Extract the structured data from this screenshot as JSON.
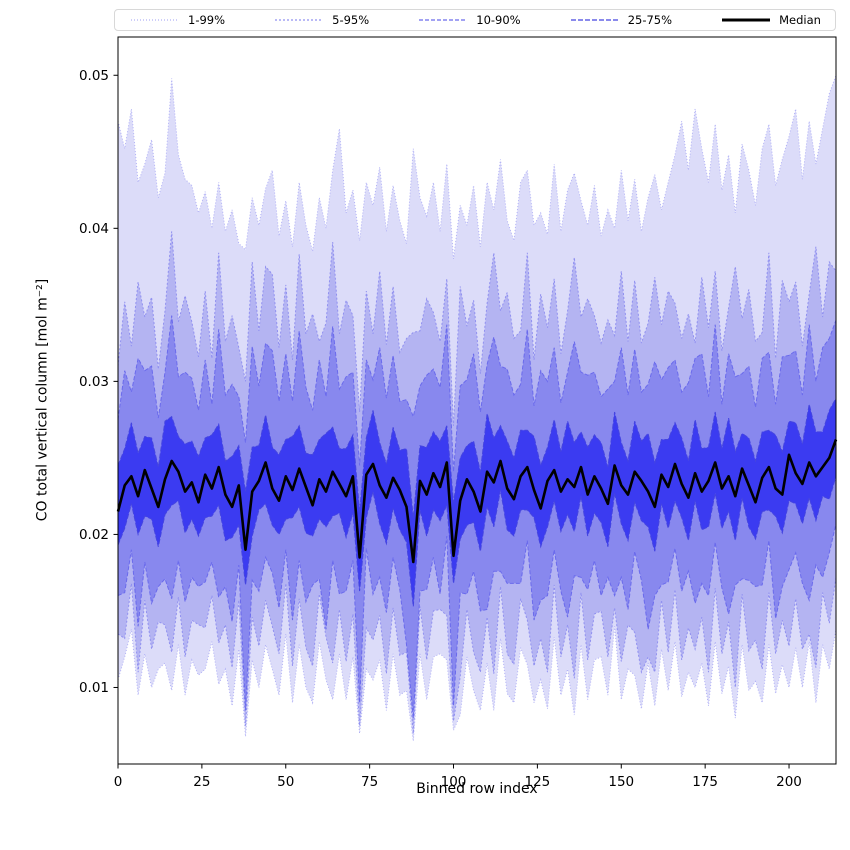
{
  "chart_data": {
    "type": "area",
    "title": "",
    "xlabel": "Binned row index",
    "ylabel": "CO total vertical column [mol m⁻²]",
    "xlim": [
      0,
      214
    ],
    "ylim": [
      0.005,
      0.0525
    ],
    "xticks": [
      0,
      25,
      50,
      75,
      100,
      125,
      150,
      175,
      200
    ],
    "xtick_labels": [
      "0",
      "25",
      "50",
      "75",
      "100",
      "125",
      "150",
      "175",
      "200"
    ],
    "yticks": [
      0.01,
      0.02,
      0.03,
      0.04,
      0.05
    ],
    "ytick_labels": [
      "0.01",
      "0.02",
      "0.03",
      "0.04",
      "0.05"
    ],
    "legend": [
      "1-99%",
      "5-95%",
      "10-90%",
      "25-75%",
      "Median"
    ],
    "median_color": "#000000",
    "unit_scale": 0.0001,
    "units_note": "series values are in units of 1e-4 mol m^-2",
    "x": {
      "start": 0,
      "step": 2,
      "count": 108
    },
    "bands": [
      {
        "label": "1-99%",
        "low": "p1",
        "high": "p99",
        "fill": "#dcdcf9",
        "edge": "#b0b0f5",
        "dash": "1 2"
      },
      {
        "label": "5-95%",
        "low": "p5",
        "high": "p95",
        "fill": "#b4b4f2",
        "edge": "#9090f0",
        "dash": "2 2"
      },
      {
        "label": "10-90%",
        "low": "p10",
        "high": "p90",
        "fill": "#8888ee",
        "edge": "#6a6aec",
        "dash": "4 2"
      },
      {
        "label": "25-75%",
        "low": "p25",
        "high": "p75",
        "fill": "#3b3bf1",
        "edge": "#4444e0",
        "dash": "5 2"
      }
    ],
    "series": {
      "median": [
        215,
        232,
        238,
        225,
        242,
        230,
        218,
        236,
        248,
        241,
        228,
        234,
        221,
        239,
        230,
        244,
        226,
        218,
        232,
        190,
        228,
        235,
        247,
        230,
        222,
        238,
        229,
        243,
        231,
        219,
        236,
        228,
        241,
        233,
        225,
        238,
        185,
        239,
        246,
        232,
        224,
        237,
        229,
        218,
        182,
        235,
        226,
        240,
        231,
        247,
        186,
        222,
        236,
        228,
        215,
        241,
        234,
        248,
        230,
        223,
        238,
        244,
        229,
        217,
        235,
        242,
        228,
        236,
        231,
        244,
        226,
        238,
        230,
        220,
        245,
        232,
        226,
        241,
        235,
        228,
        218,
        239,
        231,
        246,
        233,
        224,
        240,
        228,
        235,
        247,
        230,
        238,
        225,
        243,
        232,
        221,
        237,
        244,
        230,
        226,
        252,
        240,
        233,
        247,
        238,
        244,
        250,
        262
      ],
      "p75": [
        245,
        256,
        273,
        253,
        264,
        263,
        244,
        274,
        277,
        264,
        259,
        261,
        251,
        263,
        265,
        272,
        248,
        251,
        258,
        228,
        257,
        258,
        278,
        257,
        252,
        262,
        264,
        271,
        253,
        252,
        262,
        266,
        270,
        256,
        256,
        265,
        215,
        263,
        281,
        260,
        246,
        270,
        255,
        256,
        211,
        258,
        257,
        267,
        261,
        271,
        221,
        250,
        258,
        261,
        241,
        279,
        263,
        271,
        261,
        250,
        268,
        268,
        264,
        245,
        257,
        275,
        254,
        274,
        260,
        267,
        257,
        265,
        260,
        244,
        280,
        260,
        248,
        274,
        261,
        266,
        247,
        262,
        262,
        273,
        263,
        248,
        275,
        256,
        257,
        280,
        256,
        276,
        254,
        266,
        263,
        248,
        267,
        268,
        265,
        254,
        274,
        273,
        259,
        285,
        267,
        267,
        281,
        289
      ],
      "p25": [
        193,
        204,
        220,
        200,
        212,
        210,
        192,
        213,
        219,
        222,
        201,
        210,
        199,
        211,
        212,
        219,
        196,
        198,
        206,
        167,
        199,
        216,
        220,
        206,
        200,
        210,
        211,
        218,
        201,
        199,
        210,
        205,
        212,
        214,
        198,
        214,
        163,
        211,
        228,
        207,
        194,
        217,
        203,
        195,
        153,
        216,
        199,
        216,
        209,
        219,
        168,
        197,
        206,
        208,
        189,
        218,
        205,
        229,
        203,
        199,
        216,
        216,
        211,
        192,
        205,
        222,
        202,
        213,
        202,
        225,
        199,
        214,
        208,
        192,
        227,
        207,
        196,
        221,
        209,
        205,
        189,
        220,
        204,
        222,
        211,
        196,
        222,
        203,
        205,
        227,
        204,
        215,
        196,
        224,
        205,
        197,
        215,
        216,
        212,
        201,
        222,
        220,
        207,
        224,
        209,
        225,
        223,
        238
      ],
      "p90": [
        275,
        307,
        293,
        315,
        307,
        310,
        276,
        306,
        343,
        303,
        306,
        302,
        281,
        314,
        285,
        334,
        291,
        298,
        290,
        260,
        323,
        297,
        325,
        320,
        287,
        318,
        287,
        333,
        296,
        281,
        314,
        290,
        336,
        295,
        303,
        306,
        245,
        314,
        301,
        322,
        289,
        317,
        287,
        288,
        277,
        297,
        304,
        308,
        296,
        337,
        241,
        297,
        301,
        318,
        280,
        311,
        329,
        310,
        308,
        291,
        298,
        334,
        284,
        307,
        300,
        322,
        286,
        306,
        326,
        306,
        304,
        306,
        290,
        295,
        300,
        322,
        291,
        321,
        293,
        298,
        313,
        301,
        309,
        314,
        293,
        299,
        315,
        318,
        290,
        337,
        285,
        318,
        303,
        305,
        310,
        283,
        315,
        319,
        285,
        316,
        317,
        320,
        291,
        337,
        300,
        322,
        328,
        340
      ],
      "p10": [
        160,
        162,
        190,
        140,
        182,
        155,
        166,
        171,
        158,
        183,
        156,
        172,
        166,
        169,
        182,
        159,
        166,
        143,
        180,
        85,
        170,
        163,
        185,
        175,
        152,
        190,
        144,
        183,
        156,
        167,
        171,
        138,
        183,
        161,
        163,
        183,
        90,
        191,
        161,
        172,
        149,
        185,
        164,
        128,
        80,
        163,
        164,
        185,
        161,
        199,
        88,
        162,
        161,
        176,
        150,
        151,
        176,
        176,
        168,
        168,
        168,
        196,
        144,
        157,
        160,
        190,
        163,
        146,
        173,
        172,
        164,
        183,
        160,
        172,
        160,
        172,
        151,
        189,
        170,
        138,
        160,
        167,
        169,
        191,
        163,
        176,
        155,
        168,
        160,
        195,
        165,
        148,
        167,
        171,
        170,
        166,
        167,
        196,
        145,
        166,
        177,
        188,
        168,
        157,
        180,
        172,
        188,
        207
      ],
      "p95": [
        310,
        352,
        323,
        365,
        342,
        355,
        308,
        346,
        398,
        339,
        356,
        339,
        316,
        359,
        315,
        384,
        326,
        343,
        322,
        300,
        378,
        333,
        375,
        370,
        322,
        363,
        314,
        383,
        331,
        344,
        326,
        338,
        391,
        331,
        353,
        343,
        280,
        359,
        331,
        372,
        324,
        362,
        319,
        328,
        332,
        333,
        354,
        345,
        326,
        367,
        271,
        362,
        336,
        353,
        305,
        351,
        384,
        346,
        358,
        328,
        333,
        384,
        314,
        357,
        335,
        367,
        318,
        346,
        381,
        342,
        354,
        343,
        325,
        340,
        330,
        372,
        326,
        366,
        325,
        338,
        368,
        337,
        359,
        351,
        328,
        344,
        325,
        368,
        335,
        372,
        320,
        348,
        375,
        341,
        360,
        326,
        332,
        384,
        315,
        366,
        352,
        365,
        323,
        357,
        388,
        342,
        378,
        372
      ],
      "p5": [
        135,
        132,
        168,
        110,
        157,
        125,
        143,
        141,
        123,
        159,
        120,
        144,
        141,
        139,
        160,
        129,
        141,
        113,
        157,
        75,
        146,
        127,
        157,
        140,
        122,
        168,
        114,
        158,
        126,
        114,
        161,
        133,
        116,
        151,
        117,
        148,
        75,
        139,
        131,
        147,
        109,
        152,
        121,
        123,
        70,
        153,
        118,
        150,
        151,
        147,
        78,
        107,
        151,
        123,
        110,
        146,
        109,
        166,
        122,
        115,
        158,
        144,
        114,
        132,
        110,
        167,
        120,
        141,
        106,
        162,
        118,
        148,
        150,
        120,
        152,
        117,
        141,
        136,
        110,
        120,
        110,
        157,
        123,
        164,
        118,
        139,
        125,
        146,
        110,
        165,
        122,
        143,
        100,
        161,
        124,
        131,
        112,
        162,
        122,
        144,
        127,
        158,
        125,
        135,
        113,
        162,
        142,
        172
      ],
      "p99": [
        470,
        452,
        478,
        430,
        442,
        458,
        420,
        436,
        498,
        448,
        432,
        428,
        410,
        424,
        400,
        430,
        398,
        412,
        390,
        386,
        420,
        402,
        426,
        438,
        395,
        418,
        388,
        430,
        402,
        385,
        420,
        400,
        438,
        465,
        410,
        425,
        392,
        430,
        415,
        440,
        398,
        428,
        405,
        390,
        452,
        420,
        408,
        430,
        398,
        442,
        380,
        415,
        402,
        428,
        388,
        430,
        412,
        445,
        405,
        392,
        430,
        438,
        402,
        410,
        396,
        442,
        398,
        425,
        436,
        418,
        402,
        428,
        395,
        412,
        400,
        438,
        405,
        432,
        398,
        420,
        435,
        412,
        430,
        448,
        470,
        438,
        478,
        452,
        430,
        468,
        425,
        448,
        410,
        455,
        438,
        415,
        452,
        468,
        428,
        445,
        460,
        478,
        432,
        470,
        442,
        465,
        488,
        500
      ],
      "p1": [
        105,
        120,
        138,
        95,
        122,
        100,
        112,
        116,
        98,
        128,
        95,
        118,
        108,
        112,
        130,
        102,
        112,
        88,
        125,
        68,
        118,
        100,
        128,
        112,
        95,
        135,
        90,
        128,
        100,
        90,
        130,
        105,
        92,
        122,
        92,
        120,
        70,
        112,
        105,
        118,
        85,
        122,
        95,
        98,
        65,
        122,
        92,
        120,
        122,
        118,
        72,
        82,
        120,
        98,
        85,
        116,
        85,
        132,
        96,
        90,
        126,
        115,
        90,
        105,
        86,
        133,
        95,
        112,
        82,
        128,
        92,
        118,
        120,
        95,
        140,
        92,
        112,
        108,
        86,
        116,
        88,
        125,
        98,
        130,
        94,
        110,
        100,
        116,
        88,
        130,
        96,
        114,
        80,
        128,
        98,
        104,
        90,
        128,
        96,
        115,
        100,
        126,
        100,
        130,
        90,
        128,
        112,
        138
      ]
    }
  }
}
